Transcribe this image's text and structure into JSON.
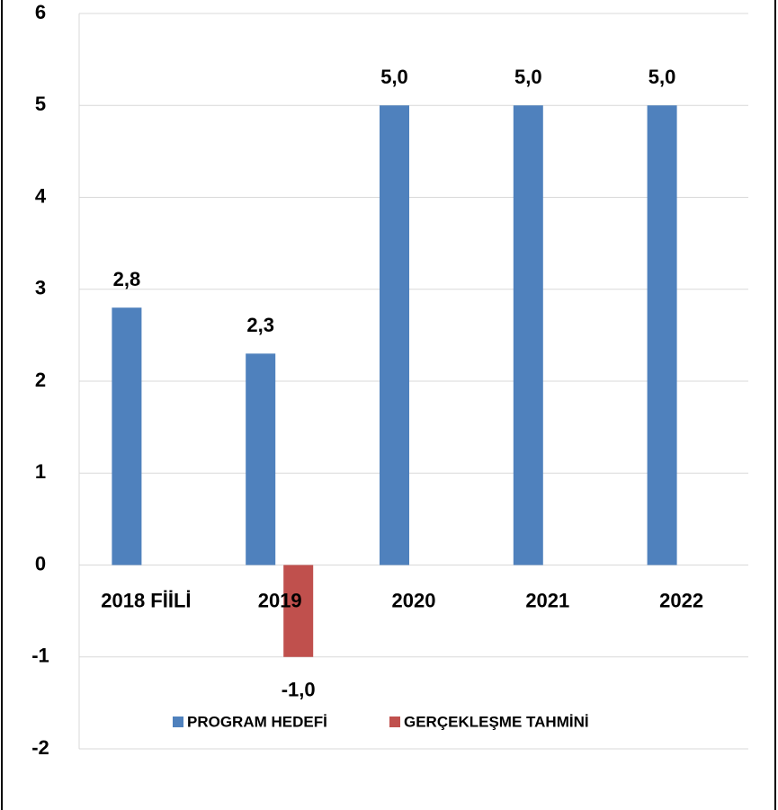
{
  "chart_data": {
    "type": "bar",
    "categories": [
      "2018 FİİLİ",
      "2019",
      "2020",
      "2021",
      "2022"
    ],
    "series": [
      {
        "name": "PROGRAM HEDEFİ",
        "color": "#4f81bd",
        "values": [
          2.8,
          2.3,
          5.0,
          5.0,
          5.0
        ],
        "value_labels": [
          "2,8",
          "2,3",
          "5,0",
          "5,0",
          "5,0"
        ]
      },
      {
        "name": "GERÇEKLEŞME TAHMİNİ",
        "color": "#c0504d",
        "values": [
          null,
          -1.0,
          null,
          null,
          null
        ],
        "value_labels": [
          null,
          "-1,0",
          null,
          null,
          null
        ]
      }
    ],
    "ylim": [
      -2,
      6
    ],
    "yticks": [
      -2,
      -1,
      0,
      1,
      2,
      3,
      4,
      5,
      6
    ],
    "grid": true,
    "legend": "bottom"
  }
}
